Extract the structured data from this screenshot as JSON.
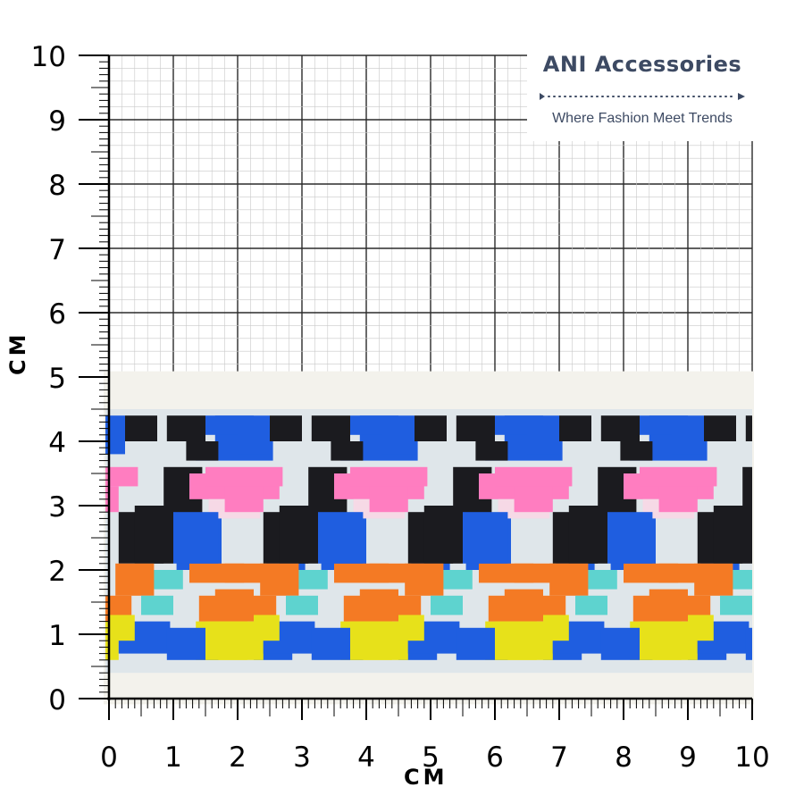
{
  "brand": {
    "name": "ANI Accessories",
    "tagline": "Where Fashion Meet Trends"
  },
  "ruler": {
    "unit_label_x": "CM",
    "unit_label_y": "CM",
    "x_ticks": [
      "0",
      "1",
      "2",
      "3",
      "4",
      "5",
      "6",
      "7",
      "8",
      "9",
      "10"
    ],
    "y_ticks": [
      "0",
      "1",
      "2",
      "3",
      "4",
      "5",
      "6",
      "7",
      "8",
      "9",
      "10"
    ],
    "range_cm": [
      0,
      10
    ],
    "subdivisions_per_cm": 5
  },
  "product": {
    "type": "jacquard elastic band",
    "width_cm": 4.9,
    "pattern_colors": {
      "base": "#dfe6ea",
      "border": "#f3f2ec",
      "black": "#1b1b1f",
      "blue": "#1f5ee0",
      "pink": "#ff7dc0",
      "orange": "#f47a24",
      "turquoise": "#5ed3cf",
      "yellow": "#e7e11a",
      "light_pink": "#f6d9e6"
    }
  },
  "colors": {
    "grid_major": "#2b2b2b",
    "grid_minor": "#c9c9c9",
    "brand_text": "#3d4a63"
  }
}
